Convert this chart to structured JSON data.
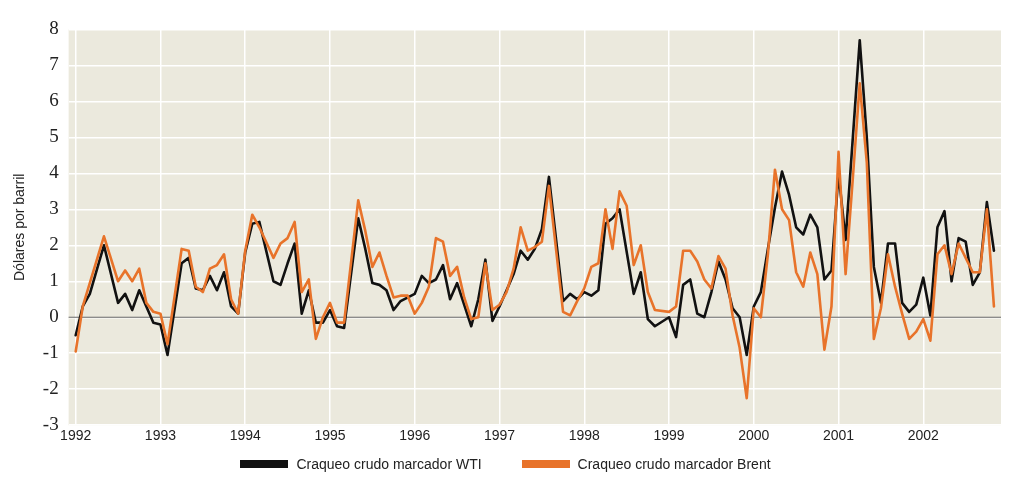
{
  "chart_data": {
    "type": "line",
    "ylabel": "Dólares por barril",
    "xlim": [
      "1991-12",
      "2002-12"
    ],
    "xticks": [
      "1992",
      "1993",
      "1994",
      "1995",
      "1996",
      "1997",
      "1998",
      "1999",
      "2000",
      "2001",
      "2002"
    ],
    "ylim": [
      -3,
      8
    ],
    "yticks": [
      -3,
      -2,
      -1,
      0,
      1,
      2,
      3,
      4,
      5,
      6,
      7,
      8
    ],
    "grid": true,
    "legend": "bottom",
    "marker": "none",
    "line_style": "solid",
    "ref_lines": [
      {
        "axis": "y",
        "value": 0,
        "color": "#666666"
      }
    ],
    "series": [
      {
        "name": "Craqueo crudo marcador WTI",
        "color": "#111111",
        "x": [
          "1992-01",
          "1992-02",
          "1992-03",
          "1992-05",
          "1992-07",
          "1992-08",
          "1992-09",
          "1992-10",
          "1992-12",
          "1993-01",
          "1993-02",
          "1993-04",
          "1993-05",
          "1993-06",
          "1993-07",
          "1993-08",
          "1993-09",
          "1993-10",
          "1993-11",
          "1993-12",
          "1994-01",
          "1994-02",
          "1994-03",
          "1994-05",
          "1994-06",
          "1994-07",
          "1994-08",
          "1994-09",
          "1994-10",
          "1994-11",
          "1994-12",
          "1995-01",
          "1995-02",
          "1995-03",
          "1995-05",
          "1995-06",
          "1995-07",
          "1995-08",
          "1995-09",
          "1995-10",
          "1995-11",
          "1996-01",
          "1996-02",
          "1996-03",
          "1996-04",
          "1996-05",
          "1996-06",
          "1996-07",
          "1996-09",
          "1996-10",
          "1996-11",
          "1996-12",
          "1997-01",
          "1997-03",
          "1997-04",
          "1997-05",
          "1997-06",
          "1997-07",
          "1997-08",
          "1997-10",
          "1997-11",
          "1997-12",
          "1998-01",
          "1998-02",
          "1998-03",
          "1998-04",
          "1998-05",
          "1998-06",
          "1998-08",
          "1998-09",
          "1998-10",
          "1998-11",
          "1999-01",
          "1999-02",
          "1999-03",
          "1999-04",
          "1999-05",
          "1999-06",
          "1999-07",
          "1999-08",
          "1999-09",
          "1999-10",
          "1999-11",
          "1999-12",
          "2000-01",
          "2000-02",
          "2000-03",
          "2000-04",
          "2000-05",
          "2000-06",
          "2000-07",
          "2000-08",
          "2000-09",
          "2000-10",
          "2000-11",
          "2000-12",
          "2001-01",
          "2001-02",
          "2001-04",
          "2001-05",
          "2001-06",
          "2001-07",
          "2001-08",
          "2001-09",
          "2001-10",
          "2001-11",
          "2001-12",
          "2002-01",
          "2002-02",
          "2002-03",
          "2002-04",
          "2002-05",
          "2002-06",
          "2002-07",
          "2002-08",
          "2002-09",
          "2002-10",
          "2002-11"
        ],
        "values": [
          -0.5,
          0.3,
          0.65,
          2.0,
          0.4,
          0.65,
          0.2,
          0.75,
          -0.15,
          -0.2,
          -1.05,
          1.5,
          1.65,
          0.8,
          0.75,
          1.15,
          0.75,
          1.25,
          0.3,
          0.1,
          1.8,
          2.6,
          2.65,
          1.0,
          0.9,
          1.5,
          2.05,
          0.1,
          0.75,
          -0.15,
          -0.15,
          0.2,
          -0.25,
          -0.3,
          2.75,
          1.9,
          0.95,
          0.9,
          0.75,
          0.2,
          0.45,
          0.65,
          1.15,
          0.95,
          1.05,
          1.45,
          0.5,
          0.95,
          -0.25,
          0.5,
          1.6,
          -0.1,
          0.3,
          1.2,
          1.85,
          1.6,
          1.9,
          2.45,
          3.9,
          0.45,
          0.65,
          0.5,
          0.7,
          0.6,
          0.75,
          2.6,
          2.75,
          3.0,
          0.65,
          1.25,
          -0.05,
          -0.25,
          0.0,
          -0.55,
          0.9,
          1.05,
          0.1,
          0.0,
          0.7,
          1.55,
          1.05,
          0.25,
          0.0,
          -1.05,
          0.3,
          0.7,
          1.9,
          3.05,
          4.05,
          3.4,
          2.5,
          2.3,
          2.85,
          2.5,
          1.05,
          1.3,
          4.0,
          2.15,
          7.7,
          5.0,
          1.4,
          0.4,
          2.05,
          2.05,
          0.4,
          0.15,
          0.35,
          1.1,
          0.05,
          2.5,
          2.95,
          1.0,
          2.2,
          2.1,
          0.9,
          1.25,
          3.2,
          1.85
        ]
      },
      {
        "name": "Craqueo crudo marcador Brent",
        "color": "#e8732a",
        "x": [
          "1992-01",
          "1992-02",
          "1992-05",
          "1992-07",
          "1992-08",
          "1992-09",
          "1992-10",
          "1992-11",
          "1992-12",
          "1993-01",
          "1993-02",
          "1993-04",
          "1993-05",
          "1993-06",
          "1993-07",
          "1993-08",
          "1993-09",
          "1993-10",
          "1993-11",
          "1993-12",
          "1994-01",
          "1994-02",
          "1994-03",
          "1994-05",
          "1994-06",
          "1994-07",
          "1994-08",
          "1994-09",
          "1994-10",
          "1994-11",
          "1994-12",
          "1995-01",
          "1995-02",
          "1995-03",
          "1995-05",
          "1995-06",
          "1995-07",
          "1995-08",
          "1995-09",
          "1995-10",
          "1995-11",
          "1995-12",
          "1996-01",
          "1996-02",
          "1996-03",
          "1996-04",
          "1996-05",
          "1996-06",
          "1996-07",
          "1996-08",
          "1996-09",
          "1996-10",
          "1996-11",
          "1996-12",
          "1997-01",
          "1997-02",
          "1997-03",
          "1997-04",
          "1997-05",
          "1997-06",
          "1997-07",
          "1997-08",
          "1997-10",
          "1997-11",
          "1997-12",
          "1998-01",
          "1998-02",
          "1998-03",
          "1998-04",
          "1998-05",
          "1998-06",
          "1998-07",
          "1998-08",
          "1998-09",
          "1998-10",
          "1998-11",
          "1999-01",
          "1999-02",
          "1999-03",
          "1999-04",
          "1999-05",
          "1999-06",
          "1999-07",
          "1999-08",
          "1999-09",
          "1999-10",
          "1999-11",
          "1999-12",
          "2000-01",
          "2000-02",
          "2000-03",
          "2000-04",
          "2000-05",
          "2000-06",
          "2000-07",
          "2000-08",
          "2000-09",
          "2000-10",
          "2000-11",
          "2000-12",
          "2001-01",
          "2001-02",
          "2001-03",
          "2001-04",
          "2001-05",
          "2001-06",
          "2001-07",
          "2001-08",
          "2001-09",
          "2001-10",
          "2001-11",
          "2001-12",
          "2002-01",
          "2002-02",
          "2002-03",
          "2002-04",
          "2002-05",
          "2002-06",
          "2002-07",
          "2002-08",
          "2002-09",
          "2002-10",
          "2002-11"
        ],
        "values": [
          -0.95,
          0.3,
          2.25,
          1.0,
          1.3,
          1.0,
          1.35,
          0.4,
          0.15,
          0.1,
          -0.75,
          1.9,
          1.85,
          0.85,
          0.7,
          1.35,
          1.45,
          1.75,
          0.5,
          0.1,
          1.85,
          2.85,
          2.5,
          1.65,
          2.05,
          2.2,
          2.65,
          0.7,
          1.05,
          -0.6,
          0.0,
          0.4,
          -0.15,
          -0.15,
          3.25,
          2.4,
          1.4,
          1.8,
          1.15,
          0.55,
          0.6,
          0.6,
          0.1,
          0.4,
          0.85,
          2.2,
          2.1,
          1.15,
          1.4,
          0.55,
          -0.05,
          0.0,
          1.5,
          0.2,
          0.35,
          0.7,
          1.35,
          2.5,
          1.85,
          1.95,
          2.1,
          3.65,
          0.15,
          0.05,
          0.45,
          0.8,
          1.4,
          1.5,
          3.0,
          1.9,
          3.5,
          3.1,
          1.45,
          2.0,
          0.7,
          0.2,
          0.15,
          0.3,
          1.85,
          1.85,
          1.55,
          1.05,
          0.8,
          1.7,
          1.35,
          0.05,
          -0.85,
          -2.25,
          0.25,
          0.0,
          1.75,
          4.1,
          3.0,
          2.7,
          1.25,
          0.85,
          1.8,
          1.2,
          -0.9,
          0.3,
          4.6,
          1.2,
          3.8,
          6.5,
          4.3,
          -0.6,
          0.25,
          1.75,
          0.85,
          0.1,
          -0.6,
          -0.4,
          -0.05,
          -0.65,
          1.75,
          2.0,
          1.2,
          2.05,
          1.65,
          1.25,
          1.25,
          3.0,
          0.3
        ]
      }
    ]
  }
}
